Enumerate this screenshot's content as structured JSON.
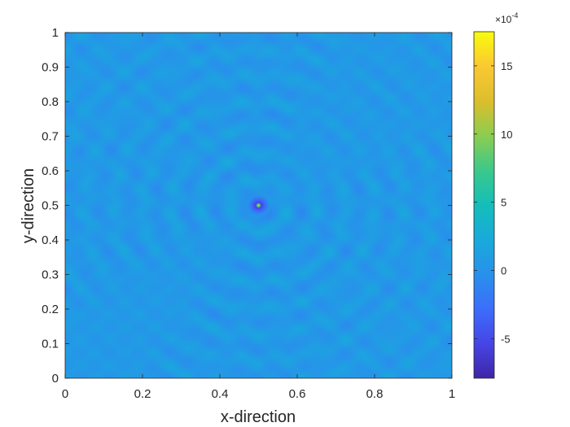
{
  "chart_data": {
    "type": "heatmap",
    "title": "",
    "xlabel": "x-direction",
    "ylabel": "y-direction",
    "xlim": [
      0,
      1
    ],
    "ylim": [
      0,
      1
    ],
    "xticks": [
      0,
      0.2,
      0.4,
      0.6,
      0.8,
      1
    ],
    "xtick_labels": [
      "0",
      "0.2",
      "0.4",
      "0.6",
      "0.8",
      "1"
    ],
    "yticks": [
      0,
      0.1,
      0.2,
      0.3,
      0.4,
      0.5,
      0.6,
      0.7,
      0.8,
      0.9,
      1
    ],
    "ytick_labels": [
      "0",
      "0.1",
      "0.2",
      "0.3",
      "0.4",
      "0.5",
      "0.6",
      "0.7",
      "0.8",
      "0.9",
      "1"
    ],
    "colormap": "parula",
    "colorbar": {
      "clim": [
        -7.9,
        17.5
      ],
      "ticks": [
        -5,
        0,
        5,
        10,
        15
      ],
      "tick_labels": [
        "-5",
        "0",
        "5",
        "10",
        "15"
      ],
      "exponent_label": "×10",
      "exponent": "-4"
    },
    "source_point": [
      0.5,
      0.5
    ],
    "grid": false
  }
}
